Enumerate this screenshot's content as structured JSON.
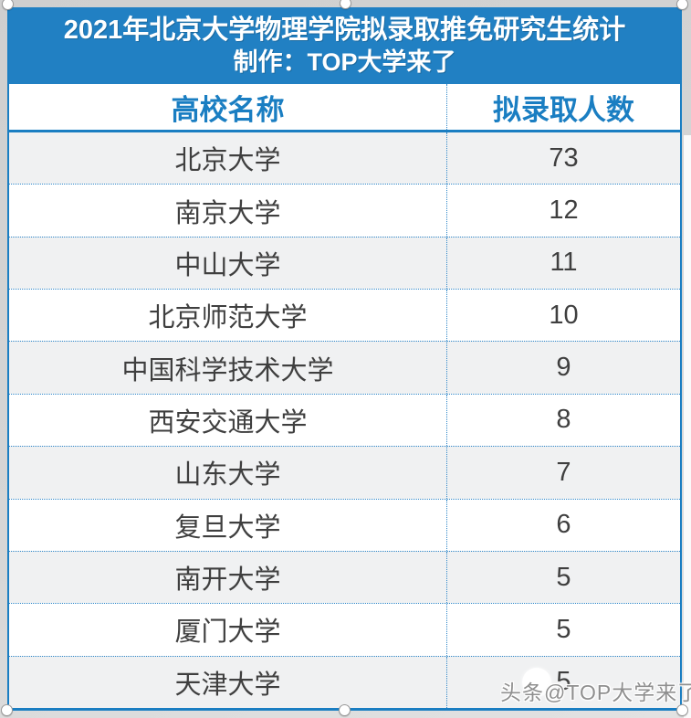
{
  "banner": {
    "title_line1": "2021年北京大学物理学院拟录取推免研究生统计",
    "title_line2": "制作：TOP大学来了",
    "bg_color": "#2180c3",
    "text_color": "#ffffff"
  },
  "table": {
    "columns": [
      "高校名称",
      "拟录取人数"
    ],
    "rows": [
      {
        "name": "北京大学",
        "count": "73"
      },
      {
        "name": "南京大学",
        "count": "12"
      },
      {
        "name": "中山大学",
        "count": "11"
      },
      {
        "name": "北京师范大学",
        "count": "10"
      },
      {
        "name": "中国科学技术大学",
        "count": "9"
      },
      {
        "name": "西安交通大学",
        "count": "8"
      },
      {
        "name": "山东大学",
        "count": "7"
      },
      {
        "name": "复旦大学",
        "count": "6"
      },
      {
        "name": "南开大学",
        "count": "5"
      },
      {
        "name": "厦门大学",
        "count": "5"
      },
      {
        "name": "天津大学",
        "count": "5"
      }
    ],
    "colors": {
      "border_blue": "#1a7ec2",
      "dotted_blue": "#2f87c9",
      "zebra_gray": "#f0f1f2",
      "text_dark": "#3f3f3f",
      "header_text_blue": "#1a7ec2"
    }
  },
  "watermark": {
    "text": "头条@TOP大学来了"
  },
  "chart_data": {
    "type": "table",
    "title": "2021年北京大学物理学院拟录取推免研究生统计",
    "subtitle": "制作：TOP大学来了",
    "columns": [
      "高校名称",
      "拟录取人数"
    ],
    "categories": [
      "北京大学",
      "南京大学",
      "中山大学",
      "北京师范大学",
      "中国科学技术大学",
      "西安交通大学",
      "山东大学",
      "复旦大学",
      "南开大学",
      "厦门大学",
      "天津大学"
    ],
    "values": [
      73,
      12,
      11,
      10,
      9,
      8,
      7,
      6,
      5,
      5,
      5
    ]
  }
}
